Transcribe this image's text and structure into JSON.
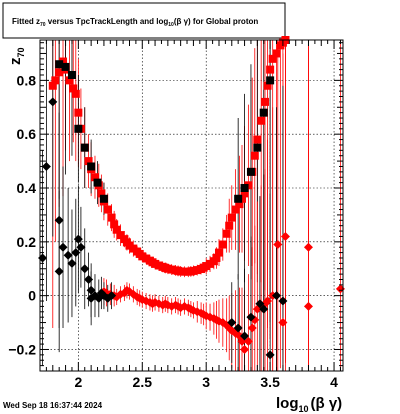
{
  "chart_data": {
    "type": "scatter",
    "title_parts": {
      "a": "Fitted ",
      "b": "z",
      "b_sub": "70",
      "c": " versus TpcTrackLength and log",
      "c_sub": "10",
      "d": "(β γ) for Global proton"
    },
    "ylabel": "z",
    "ylabel_sub": "70",
    "xlabel": "log",
    "xlabel_sub": "10",
    "xlabel_tail": "(β γ)",
    "timestamp": "Wed Sep 18 16:37:44 2024",
    "xlim": [
      1.7,
      4.07
    ],
    "ylim": [
      -0.28,
      0.95
    ],
    "x_ticks": [
      2,
      2.5,
      3,
      3.5,
      4
    ],
    "x_tick_labels": [
      "2",
      "2.5",
      "3",
      "3.5",
      "4"
    ],
    "y_ticks": [
      -0.2,
      0,
      0.2,
      0.4,
      0.6,
      0.8
    ],
    "y_tick_labels": [
      "−0.2",
      "0",
      "0.2",
      "0.4",
      "0.6",
      "0.8"
    ],
    "grid": true,
    "colors": {
      "red": "#ff0000",
      "black": "#000000"
    },
    "series": [
      {
        "marker": "square",
        "color": "#ff0000",
        "points": [
          [
            1.8,
            0.78,
            0.9
          ],
          [
            1.82,
            0.8,
            0.6
          ],
          [
            1.85,
            0.83,
            0.5
          ],
          [
            1.88,
            0.87,
            0.5
          ],
          [
            1.9,
            0.84,
            0.3
          ],
          [
            1.93,
            0.8,
            0.3
          ],
          [
            1.96,
            0.77,
            0.2
          ],
          [
            1.98,
            0.75,
            0.25
          ],
          [
            2.0,
            0.68,
            0.2
          ],
          [
            2.02,
            0.62,
            0.15
          ],
          [
            2.05,
            0.55,
            0.15
          ],
          [
            2.08,
            0.5,
            0.1
          ],
          [
            2.1,
            0.47,
            0.1
          ],
          [
            2.13,
            0.44,
            0.08
          ],
          [
            2.16,
            0.41,
            0.08
          ],
          [
            2.18,
            0.38,
            0.07
          ],
          [
            2.2,
            0.35,
            0.07
          ],
          [
            2.23,
            0.32,
            0.06
          ],
          [
            2.26,
            0.29,
            0.05
          ],
          [
            2.28,
            0.265,
            0.05
          ],
          [
            2.3,
            0.245,
            0.04
          ],
          [
            2.33,
            0.225,
            0.04
          ],
          [
            2.36,
            0.21,
            0.03
          ],
          [
            2.38,
            0.198,
            0.03
          ],
          [
            2.4,
            0.186,
            0.03
          ],
          [
            2.43,
            0.175,
            0.03
          ],
          [
            2.46,
            0.164,
            0.02
          ],
          [
            2.48,
            0.155,
            0.02
          ],
          [
            2.5,
            0.146,
            0.02
          ],
          [
            2.53,
            0.138,
            0.02
          ],
          [
            2.56,
            0.13,
            0.02
          ],
          [
            2.58,
            0.124,
            0.02
          ],
          [
            2.6,
            0.118,
            0.02
          ],
          [
            2.63,
            0.112,
            0.02
          ],
          [
            2.66,
            0.107,
            0.02
          ],
          [
            2.68,
            0.103,
            0.02
          ],
          [
            2.7,
            0.1,
            0.02
          ],
          [
            2.73,
            0.097,
            0.02
          ],
          [
            2.76,
            0.094,
            0.02
          ],
          [
            2.78,
            0.092,
            0.02
          ],
          [
            2.8,
            0.09,
            0.02
          ],
          [
            2.83,
            0.089,
            0.02
          ],
          [
            2.86,
            0.089,
            0.02
          ],
          [
            2.88,
            0.09,
            0.02
          ],
          [
            2.9,
            0.092,
            0.02
          ],
          [
            2.93,
            0.095,
            0.02
          ],
          [
            2.96,
            0.099,
            0.02
          ],
          [
            2.98,
            0.104,
            0.02
          ],
          [
            3.0,
            0.11,
            0.03
          ],
          [
            3.03,
            0.118,
            0.03
          ],
          [
            3.06,
            0.128,
            0.03
          ],
          [
            3.08,
            0.14,
            0.04
          ],
          [
            3.1,
            0.16,
            0.05
          ],
          [
            3.13,
            0.19,
            0.06
          ],
          [
            3.16,
            0.23,
            0.07
          ],
          [
            3.18,
            0.26,
            0.1
          ],
          [
            3.2,
            0.29,
            0.12
          ],
          [
            3.23,
            0.32,
            0.15
          ],
          [
            3.26,
            0.34,
            0.18
          ],
          [
            3.28,
            0.36,
            0.2
          ],
          [
            3.3,
            0.38,
            0.25
          ],
          [
            3.33,
            0.41,
            0.3
          ],
          [
            3.36,
            0.46,
            0.35
          ],
          [
            3.38,
            0.52,
            0.4
          ],
          [
            3.4,
            0.58,
            0.5
          ],
          [
            3.43,
            0.65,
            0.6
          ],
          [
            3.46,
            0.72,
            0.7
          ],
          [
            3.48,
            0.78,
            0.9
          ],
          [
            3.5,
            0.84,
            1.0
          ],
          [
            3.52,
            0.88,
            1.2
          ],
          [
            3.55,
            0.9,
            1.2
          ],
          [
            3.58,
            0.93,
            1.2
          ],
          [
            3.6,
            0.94,
            1.2
          ],
          [
            3.62,
            0.95,
            1.2
          ]
        ]
      },
      {
        "marker": "square",
        "color": "#000000",
        "points": [
          [
            1.85,
            0.86,
            0.5
          ],
          [
            1.9,
            0.85,
            0.4
          ],
          [
            1.95,
            0.82,
            0.3
          ],
          [
            2.0,
            0.62,
            0.2
          ],
          [
            2.05,
            0.55,
            0.15
          ],
          [
            2.1,
            0.48,
            0.1
          ],
          [
            2.15,
            0.42,
            0.08
          ],
          [
            2.2,
            0.36,
            0.06
          ],
          [
            3.25,
            0.36,
            0.3
          ],
          [
            3.3,
            0.4,
            0.35
          ],
          [
            3.35,
            0.46,
            0.4
          ],
          [
            3.4,
            0.55,
            0.5
          ],
          [
            3.45,
            0.68,
            0.7
          ],
          [
            3.5,
            0.8,
            0.9
          ]
        ]
      },
      {
        "marker": "diamond",
        "color": "#ff0000",
        "points": [
          [
            2.2,
            0.015,
            0.05
          ],
          [
            2.22,
            0.01,
            0.05
          ],
          [
            2.25,
            0.005,
            0.04
          ],
          [
            2.28,
            0.0,
            0.04
          ],
          [
            2.3,
            -0.005,
            0.03
          ],
          [
            2.33,
            0.005,
            0.03
          ],
          [
            2.36,
            0.01,
            0.03
          ],
          [
            2.38,
            0.02,
            0.03
          ],
          [
            2.4,
            0.015,
            0.03
          ],
          [
            2.43,
            0.005,
            0.03
          ],
          [
            2.46,
            -0.005,
            0.03
          ],
          [
            2.48,
            -0.01,
            0.03
          ],
          [
            2.5,
            -0.015,
            0.03
          ],
          [
            2.53,
            -0.02,
            0.03
          ],
          [
            2.56,
            -0.025,
            0.03
          ],
          [
            2.58,
            -0.03,
            0.03
          ],
          [
            2.6,
            -0.025,
            0.03
          ],
          [
            2.63,
            -0.03,
            0.03
          ],
          [
            2.66,
            -0.035,
            0.03
          ],
          [
            2.68,
            -0.03,
            0.03
          ],
          [
            2.7,
            -0.035,
            0.03
          ],
          [
            2.73,
            -0.04,
            0.03
          ],
          [
            2.76,
            -0.035,
            0.03
          ],
          [
            2.78,
            -0.04,
            0.03
          ],
          [
            2.8,
            -0.045,
            0.03
          ],
          [
            2.83,
            -0.04,
            0.03
          ],
          [
            2.86,
            -0.045,
            0.03
          ],
          [
            2.88,
            -0.05,
            0.03
          ],
          [
            2.9,
            -0.055,
            0.03
          ],
          [
            2.93,
            -0.06,
            0.04
          ],
          [
            2.96,
            -0.065,
            0.04
          ],
          [
            2.98,
            -0.07,
            0.04
          ],
          [
            3.0,
            -0.075,
            0.05
          ],
          [
            3.03,
            -0.08,
            0.05
          ],
          [
            3.06,
            -0.085,
            0.06
          ],
          [
            3.08,
            -0.09,
            0.07
          ],
          [
            3.1,
            -0.095,
            0.08
          ],
          [
            3.13,
            -0.1,
            0.09
          ],
          [
            3.16,
            -0.11,
            0.1
          ],
          [
            3.18,
            -0.12,
            0.12
          ],
          [
            3.2,
            -0.13,
            0.14
          ],
          [
            3.23,
            -0.14,
            0.16
          ],
          [
            3.26,
            -0.15,
            0.18
          ],
          [
            3.28,
            -0.17,
            0.2
          ],
          [
            3.3,
            -0.2,
            0.22
          ],
          [
            3.33,
            -0.17,
            0.25
          ],
          [
            3.36,
            -0.12,
            0.3
          ],
          [
            3.38,
            -0.09,
            0.35
          ],
          [
            3.4,
            -0.05,
            0.4
          ],
          [
            3.43,
            -0.04,
            0.45
          ],
          [
            3.46,
            -0.03,
            0.5
          ],
          [
            3.48,
            -0.02,
            0.6
          ],
          [
            3.52,
            0.0,
            0.7
          ],
          [
            3.56,
            0.19,
            0.8
          ],
          [
            3.6,
            -0.1,
            1.0
          ],
          [
            3.62,
            0.22,
            1.0
          ],
          [
            3.8,
            0.18,
            1.0
          ],
          [
            3.8,
            -0.04,
            1.0
          ],
          [
            4.05,
            0.025,
            1.0
          ]
        ]
      },
      {
        "marker": "diamond",
        "color": "#000000",
        "points": [
          [
            1.72,
            0.14,
            0.4
          ],
          [
            1.75,
            0.48,
            0.5
          ],
          [
            1.8,
            0.72,
            0.5
          ],
          [
            1.85,
            0.28,
            0.4
          ],
          [
            1.88,
            0.18,
            0.3
          ],
          [
            1.92,
            0.15,
            0.25
          ],
          [
            1.95,
            0.12,
            0.2
          ],
          [
            1.98,
            0.16,
            0.2
          ],
          [
            2.0,
            0.21,
            0.2
          ],
          [
            2.02,
            0.18,
            0.15
          ],
          [
            2.05,
            0.1,
            0.15
          ],
          [
            2.08,
            0.06,
            0.1
          ],
          [
            2.1,
            0.02,
            0.1
          ],
          [
            2.13,
            0.0,
            0.08
          ],
          [
            2.16,
            -0.01,
            0.07
          ],
          [
            2.18,
            0.01,
            0.06
          ],
          [
            2.2,
            0.0,
            0.05
          ],
          [
            2.23,
            -0.01,
            0.05
          ],
          [
            2.26,
            0.0,
            0.05
          ],
          [
            1.85,
            0.09,
            0.3
          ],
          [
            2.1,
            -0.01,
            0.1
          ],
          [
            3.2,
            -0.1,
            0.15
          ],
          [
            3.25,
            -0.12,
            0.2
          ],
          [
            3.3,
            -0.15,
            0.25
          ],
          [
            3.35,
            -0.08,
            0.3
          ],
          [
            3.42,
            -0.03,
            0.4
          ],
          [
            3.45,
            -0.05,
            0.5
          ],
          [
            3.5,
            -0.22,
            0.6
          ],
          [
            3.55,
            0.0,
            0.7
          ],
          [
            3.6,
            -0.02,
            0.8
          ]
        ]
      }
    ]
  }
}
